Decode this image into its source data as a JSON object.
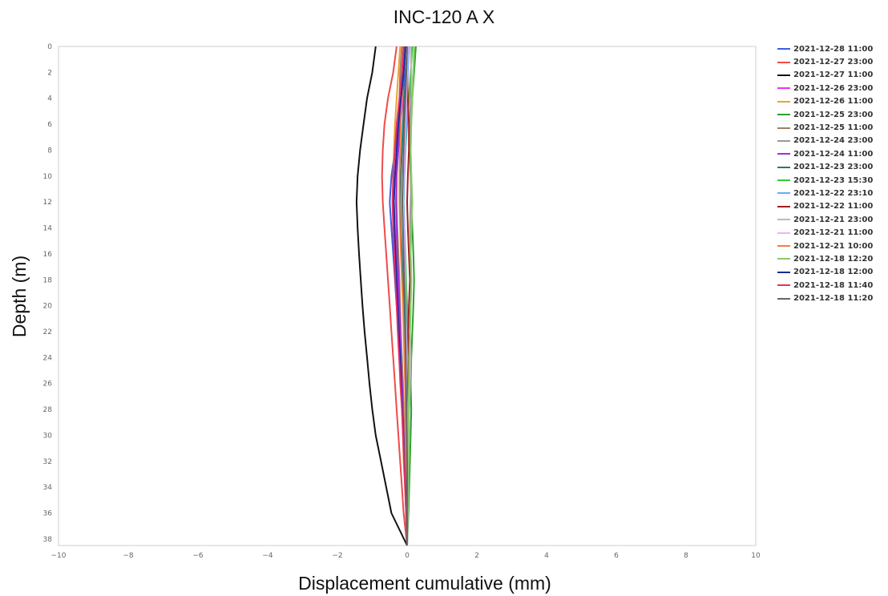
{
  "chart_data": {
    "type": "line",
    "title": "INC-120 A X",
    "xlabel": "Displacement cumulative (mm)",
    "ylabel": "Depth (m)",
    "xlim": [
      -10,
      10
    ],
    "ylim": [
      0,
      38.5
    ],
    "y_inverted": true,
    "grid": false,
    "legend_position": "right",
    "x_ticks": [
      -10,
      -8,
      -6,
      -4,
      -2,
      0,
      2,
      4,
      6,
      8,
      10
    ],
    "x_tick_labels": [
      "−10",
      "−8",
      "−6",
      "−4",
      "−2",
      "0",
      "2",
      "4",
      "6",
      "8",
      "10"
    ],
    "y_ticks": [
      0,
      2,
      4,
      6,
      8,
      10,
      12,
      14,
      16,
      18,
      20,
      22,
      24,
      26,
      28,
      30,
      32,
      34,
      36,
      38
    ],
    "depth": [
      0,
      2,
      4,
      6,
      8,
      10,
      12,
      14,
      16,
      18,
      20,
      22,
      24,
      26,
      28,
      30,
      32,
      34,
      36,
      38.5
    ],
    "series": [
      {
        "name": "2021-12-28 11:00",
        "color": "#3b5ee6",
        "values": [
          0.0,
          -0.05,
          -0.15,
          -0.25,
          -0.35,
          -0.45,
          -0.5,
          -0.45,
          -0.4,
          -0.35,
          -0.3,
          -0.25,
          -0.2,
          -0.15,
          -0.12,
          -0.1,
          -0.08,
          -0.05,
          -0.03,
          0.0
        ]
      },
      {
        "name": "2021-12-27 23:00",
        "color": "#f04a4a",
        "values": [
          -0.3,
          -0.4,
          -0.55,
          -0.65,
          -0.7,
          -0.72,
          -0.7,
          -0.65,
          -0.6,
          -0.55,
          -0.5,
          -0.45,
          -0.4,
          -0.35,
          -0.3,
          -0.25,
          -0.2,
          -0.15,
          -0.1,
          0.0
        ]
      },
      {
        "name": "2021-12-27 11:00",
        "color": "#111111",
        "values": [
          -0.9,
          -1.0,
          -1.15,
          -1.25,
          -1.35,
          -1.42,
          -1.45,
          -1.42,
          -1.38,
          -1.33,
          -1.28,
          -1.22,
          -1.15,
          -1.08,
          -1.0,
          -0.9,
          -0.75,
          -0.6,
          -0.45,
          0.0
        ]
      },
      {
        "name": "2021-12-26 23:00",
        "color": "#ee33ee",
        "values": [
          0.05,
          0.0,
          -0.1,
          -0.2,
          -0.28,
          -0.35,
          -0.38,
          -0.35,
          -0.3,
          -0.28,
          -0.25,
          -0.22,
          -0.2,
          -0.15,
          -0.12,
          -0.1,
          -0.08,
          -0.05,
          -0.03,
          0.0
        ]
      },
      {
        "name": "2021-12-26 11:00",
        "color": "#f0a030",
        "values": [
          -0.2,
          -0.25,
          -0.3,
          -0.35,
          -0.38,
          -0.4,
          -0.38,
          -0.35,
          -0.32,
          -0.3,
          -0.28,
          -0.25,
          -0.22,
          -0.2,
          -0.15,
          -0.12,
          -0.1,
          -0.06,
          -0.03,
          0.0
        ]
      },
      {
        "name": "2021-12-25 23:00",
        "color": "#2ea02e",
        "values": [
          0.25,
          0.2,
          0.15,
          0.1,
          0.08,
          0.1,
          0.12,
          0.15,
          0.18,
          0.2,
          0.18,
          0.15,
          0.12,
          0.1,
          0.12,
          0.1,
          0.08,
          0.06,
          0.04,
          0.0
        ]
      },
      {
        "name": "2021-12-25 11:00",
        "color": "#a08060",
        "values": [
          -0.15,
          -0.2,
          -0.22,
          -0.25,
          -0.28,
          -0.3,
          -0.3,
          -0.28,
          -0.25,
          -0.22,
          -0.2,
          -0.18,
          -0.15,
          -0.12,
          -0.1,
          -0.08,
          -0.06,
          -0.04,
          -0.02,
          0.0
        ]
      },
      {
        "name": "2021-12-24 23:00",
        "color": "#999999",
        "values": [
          0.1,
          0.12,
          0.1,
          0.08,
          0.1,
          0.12,
          0.1,
          0.08,
          0.1,
          0.12,
          0.1,
          0.08,
          0.1,
          0.08,
          0.06,
          0.05,
          0.04,
          0.03,
          0.02,
          0.0
        ]
      },
      {
        "name": "2021-12-24 11:00",
        "color": "#a030e0",
        "values": [
          -0.05,
          -0.1,
          -0.15,
          -0.2,
          -0.25,
          -0.3,
          -0.32,
          -0.3,
          -0.28,
          -0.25,
          -0.22,
          -0.2,
          -0.18,
          -0.15,
          -0.12,
          -0.1,
          -0.08,
          -0.05,
          -0.03,
          0.0
        ]
      },
      {
        "name": "2021-12-23 23:00",
        "color": "#1f7a7a",
        "values": [
          0.0,
          -0.03,
          -0.08,
          -0.12,
          -0.15,
          -0.18,
          -0.2,
          -0.18,
          -0.15,
          -0.12,
          -0.1,
          -0.08,
          -0.06,
          -0.05,
          -0.04,
          -0.03,
          -0.02,
          -0.01,
          0.0,
          0.0
        ]
      },
      {
        "name": "2021-12-23 15:30",
        "color": "#33cc33",
        "values": [
          0.15,
          0.1,
          0.05,
          0.0,
          -0.05,
          -0.08,
          -0.1,
          -0.08,
          -0.05,
          -0.03,
          0.0,
          0.02,
          0.03,
          0.02,
          0.01,
          0.0,
          0.0,
          0.0,
          0.0,
          0.0
        ]
      },
      {
        "name": "2021-12-22 23:10",
        "color": "#66aaff",
        "values": [
          0.05,
          0.02,
          0.0,
          -0.02,
          -0.05,
          -0.08,
          -0.1,
          -0.08,
          -0.06,
          -0.05,
          -0.04,
          -0.03,
          -0.02,
          -0.02,
          -0.01,
          -0.01,
          0.0,
          0.0,
          0.0,
          0.0
        ]
      },
      {
        "name": "2021-12-22 11:00",
        "color": "#a02020",
        "values": [
          0.0,
          0.0,
          0.02,
          0.05,
          0.05,
          0.02,
          0.0,
          0.02,
          0.05,
          0.08,
          0.05,
          0.03,
          0.05,
          0.03,
          0.02,
          0.01,
          0.0,
          0.0,
          0.0,
          0.0
        ]
      },
      {
        "name": "2021-12-21 23:00",
        "color": "#bbbbbb",
        "values": [
          0.1,
          0.12,
          0.15,
          0.12,
          0.1,
          0.12,
          0.15,
          0.12,
          0.1,
          0.12,
          0.1,
          0.08,
          0.1,
          0.08,
          0.06,
          0.05,
          0.04,
          0.03,
          0.02,
          0.0
        ]
      },
      {
        "name": "2021-12-21 11:00",
        "color": "#ffaaee",
        "values": [
          0.02,
          0.0,
          -0.02,
          -0.05,
          -0.08,
          -0.1,
          -0.12,
          -0.1,
          -0.08,
          -0.06,
          -0.05,
          -0.04,
          -0.03,
          -0.02,
          -0.01,
          0.0,
          0.0,
          0.0,
          0.0,
          0.0
        ]
      },
      {
        "name": "2021-12-21 10:00",
        "color": "#f08040",
        "values": [
          -0.1,
          -0.12,
          -0.15,
          -0.18,
          -0.2,
          -0.22,
          -0.22,
          -0.2,
          -0.18,
          -0.15,
          -0.12,
          -0.1,
          -0.08,
          -0.06,
          -0.05,
          -0.04,
          -0.03,
          -0.02,
          -0.01,
          0.0
        ]
      },
      {
        "name": "2021-12-18 12:20",
        "color": "#88cc66",
        "values": [
          0.2,
          0.18,
          0.15,
          0.12,
          0.1,
          0.12,
          0.15,
          0.12,
          0.1,
          0.12,
          0.1,
          0.08,
          0.06,
          0.05,
          0.04,
          0.03,
          0.02,
          0.02,
          0.01,
          0.0
        ]
      },
      {
        "name": "2021-12-18 12:00",
        "color": "#1a2a99",
        "values": [
          -0.05,
          -0.1,
          -0.18,
          -0.25,
          -0.3,
          -0.35,
          -0.38,
          -0.36,
          -0.33,
          -0.3,
          -0.27,
          -0.24,
          -0.2,
          -0.17,
          -0.14,
          -0.11,
          -0.08,
          -0.05,
          -0.02,
          0.0
        ]
      },
      {
        "name": "2021-12-18 11:40",
        "color": "#e0306a",
        "values": [
          -0.1,
          -0.15,
          -0.22,
          -0.3,
          -0.35,
          -0.4,
          -0.42,
          -0.4,
          -0.37,
          -0.34,
          -0.3,
          -0.27,
          -0.23,
          -0.19,
          -0.15,
          -0.12,
          -0.09,
          -0.06,
          -0.03,
          0.0
        ]
      },
      {
        "name": "2021-12-18 11:20",
        "color": "#666666",
        "values": [
          0.0,
          -0.02,
          -0.05,
          -0.08,
          -0.1,
          -0.12,
          -0.14,
          -0.12,
          -0.1,
          -0.08,
          -0.06,
          -0.05,
          -0.04,
          -0.03,
          -0.02,
          -0.01,
          0.0,
          0.0,
          0.0,
          0.0
        ]
      }
    ]
  }
}
